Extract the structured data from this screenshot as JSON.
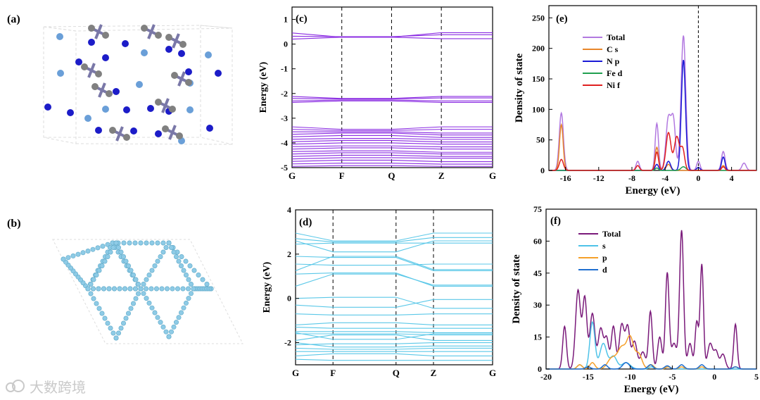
{
  "panel_labels": {
    "a": "(a)",
    "b": "(b)",
    "c": "(c)",
    "d": "(d)",
    "e": "(e)",
    "f": "(f)"
  },
  "watermark": "大数跨境",
  "colors": {
    "c_band": "#8a2be2",
    "d_band": "#5bc8e8",
    "e_total": "#b279e0",
    "e_cs": "#e8862a",
    "e_np": "#1a1ad6",
    "e_fed": "#20a050",
    "e_nif": "#e02020",
    "f_total": "#7a1a7a",
    "f_s": "#4fc3e8",
    "f_p": "#f5a02a",
    "f_d": "#1f6fd0"
  },
  "chart_data": [
    {
      "id": "c",
      "type": "line",
      "subtype": "band_structure",
      "ylabel": "Energy (eV)",
      "ylim": [
        -5,
        1.5
      ],
      "yticks": [
        -5,
        -4,
        -3,
        -2,
        -1,
        0,
        1
      ],
      "kpoints": [
        "G",
        "F",
        "Q",
        "Z",
        "G"
      ],
      "kpos": [
        0,
        1,
        2,
        3,
        4.03
      ],
      "bands": [
        [
          0.45,
          0.28,
          0.28,
          0.46,
          0.46
        ],
        [
          0.2,
          0.28,
          0.28,
          0.22,
          0.22
        ],
        [
          0.32,
          0.3,
          0.3,
          0.38,
          0.38
        ],
        [
          -2.12,
          -2.2,
          -2.2,
          -2.12,
          -2.12
        ],
        [
          -2.2,
          -2.22,
          -2.22,
          -2.18,
          -2.18
        ],
        [
          -2.3,
          -2.26,
          -2.26,
          -2.3,
          -2.3
        ],
        [
          -2.36,
          -2.3,
          -2.3,
          -2.36,
          -2.36
        ],
        [
          -3.35,
          -3.45,
          -3.45,
          -3.35,
          -3.35
        ],
        [
          -3.45,
          -3.5,
          -3.5,
          -3.45,
          -3.45
        ],
        [
          -3.55,
          -3.55,
          -3.55,
          -3.6,
          -3.6
        ],
        [
          -3.65,
          -3.6,
          -3.6,
          -3.68,
          -3.68
        ],
        [
          -3.75,
          -3.7,
          -3.7,
          -3.78,
          -3.78
        ],
        [
          -3.85,
          -3.82,
          -3.82,
          -3.86,
          -3.86
        ],
        [
          -3.95,
          -3.9,
          -3.9,
          -3.96,
          -3.96
        ],
        [
          -4.05,
          -4.0,
          -4.0,
          -4.05,
          -4.05
        ],
        [
          -4.15,
          -4.12,
          -4.12,
          -4.16,
          -4.16
        ],
        [
          -4.25,
          -4.2,
          -4.2,
          -4.25,
          -4.25
        ],
        [
          -4.35,
          -4.32,
          -4.32,
          -4.38,
          -4.38
        ],
        [
          -4.45,
          -4.4,
          -4.4,
          -4.45,
          -4.45
        ],
        [
          -4.55,
          -4.5,
          -4.5,
          -4.55,
          -4.55
        ],
        [
          -4.65,
          -4.6,
          -4.6,
          -4.62,
          -4.62
        ],
        [
          -4.75,
          -4.7,
          -4.7,
          -4.76,
          -4.76
        ],
        [
          -4.85,
          -4.82,
          -4.82,
          -4.86,
          -4.86
        ],
        [
          -4.95,
          -4.92,
          -4.92,
          -4.95,
          -4.95
        ]
      ]
    },
    {
      "id": "d",
      "type": "line",
      "subtype": "band_structure",
      "ylabel": "Energy (eV)",
      "ylim": [
        -3,
        4
      ],
      "yticks": [
        -2,
        0,
        2,
        4
      ],
      "kpoints": [
        "G",
        "F",
        "Q",
        "Z",
        "G"
      ],
      "kpos": [
        0,
        0.19,
        0.51,
        0.7,
        1.0
      ],
      "bands": [
        [
          2.95,
          2.6,
          2.6,
          2.95,
          2.95
        ],
        [
          2.7,
          2.55,
          2.55,
          2.75,
          2.75
        ],
        [
          2.45,
          2.5,
          2.5,
          2.5,
          2.5
        ],
        [
          2.6,
          2.1,
          2.1,
          2.6,
          2.6
        ],
        [
          1.25,
          1.9,
          1.9,
          1.3,
          1.3
        ],
        [
          1.9,
          1.85,
          1.85,
          1.25,
          1.25
        ],
        [
          1.55,
          1.5,
          1.5,
          1.55,
          1.55
        ],
        [
          0.55,
          1.1,
          1.1,
          0.6,
          0.6
        ],
        [
          1.1,
          1.15,
          1.15,
          0.55,
          0.55
        ],
        [
          -0.3,
          -0.4,
          -0.4,
          -0.05,
          -0.05
        ],
        [
          0.0,
          0.05,
          0.05,
          -0.45,
          -0.45
        ],
        [
          -0.7,
          -0.75,
          -0.75,
          -0.7,
          -0.7
        ],
        [
          -1.2,
          -1.1,
          -1.1,
          -1.2,
          -1.2
        ],
        [
          -1.3,
          -1.35,
          -1.35,
          -1.35,
          -1.35
        ],
        [
          -1.5,
          -1.5,
          -1.5,
          -1.55,
          -1.55
        ],
        [
          -1.6,
          -1.6,
          -1.6,
          -1.65,
          -1.65
        ],
        [
          -1.55,
          -1.85,
          -1.85,
          -1.6,
          -1.6
        ],
        [
          -1.9,
          -1.65,
          -1.65,
          -1.9,
          -1.9
        ],
        [
          -2.1,
          -2.05,
          -2.05,
          -2.0,
          -2.0
        ],
        [
          -2.0,
          -2.2,
          -2.2,
          -2.15,
          -2.15
        ],
        [
          -2.25,
          -2.3,
          -2.3,
          -2.25,
          -2.25
        ],
        [
          -2.4,
          -2.4,
          -2.4,
          -2.4,
          -2.4
        ],
        [
          -2.6,
          -2.5,
          -2.5,
          -2.6,
          -2.6
        ],
        [
          -2.75,
          -2.8,
          -2.8,
          -2.8,
          -2.8
        ]
      ]
    },
    {
      "id": "e",
      "type": "line",
      "subtype": "dos",
      "xlabel": "Energy (eV)",
      "ylabel": "Density of state",
      "xlim": [
        -18,
        7
      ],
      "ylim": [
        0,
        270
      ],
      "xticks": [
        -16,
        -12,
        -8,
        -4,
        0,
        4
      ],
      "yticks": [
        0,
        50,
        100,
        150,
        200,
        250
      ],
      "fermi_level": 0,
      "legend": {
        "placement": "top-left"
      },
      "series": [
        {
          "name": "Total",
          "color_key": "e_total",
          "peaks": [
            [
              -16.5,
              94,
              0.25
            ],
            [
              -7.3,
              15,
              0.2
            ],
            [
              -5.0,
              77,
              0.2
            ],
            [
              -3.6,
              86,
              0.3
            ],
            [
              -3.0,
              78,
              0.25
            ],
            [
              -1.8,
              221,
              0.28
            ],
            [
              0.0,
              15,
              0.2
            ],
            [
              3.0,
              31,
              0.22
            ],
            [
              5.5,
              12,
              0.25
            ]
          ]
        },
        {
          "name": "C s",
          "color_key": "e_cs",
          "peaks": [
            [
              -16.5,
              75,
              0.22
            ],
            [
              -5.0,
              38,
              0.2
            ],
            [
              -3.6,
              10,
              0.25
            ],
            [
              3.0,
              8,
              0.2
            ]
          ]
        },
        {
          "name": "N p",
          "color_key": "e_np",
          "peaks": [
            [
              -5.0,
              10,
              0.2
            ],
            [
              -3.6,
              15,
              0.25
            ],
            [
              -1.8,
              181,
              0.25
            ],
            [
              0.0,
              5,
              0.2
            ],
            [
              3.0,
              22,
              0.2
            ]
          ]
        },
        {
          "name": "Fe d",
          "color_key": "e_fed",
          "peaks": [
            [
              -5.0,
              4,
              0.2
            ],
            [
              -1.8,
              6,
              0.3
            ]
          ]
        },
        {
          "name": "Ni f",
          "color_key": "e_nif",
          "peaks": [
            [
              -16.5,
              18,
              0.25
            ],
            [
              -7.3,
              8,
              0.2
            ],
            [
              -5.0,
              30,
              0.2
            ],
            [
              -3.6,
              62,
              0.3
            ],
            [
              -2.6,
              55,
              0.3
            ],
            [
              -1.9,
              35,
              0.25
            ],
            [
              3.0,
              6,
              0.2
            ]
          ]
        }
      ]
    },
    {
      "id": "f",
      "type": "line",
      "subtype": "dos",
      "xlabel": "Energy (eV)",
      "ylabel": "Density of state",
      "xlim": [
        -20,
        5
      ],
      "ylim": [
        0,
        75
      ],
      "xticks": [
        -20,
        -15,
        -10,
        -5,
        0,
        5
      ],
      "yticks": [
        0,
        15,
        30,
        45,
        60,
        75
      ],
      "legend": {
        "placement": "top-left"
      },
      "series": [
        {
          "name": "Total",
          "color_key": "f_total",
          "peaks": [
            [
              -17.8,
              20,
              0.22
            ],
            [
              -16.2,
              37,
              0.3
            ],
            [
              -15.4,
              33,
              0.25
            ],
            [
              -14.5,
              26,
              0.3
            ],
            [
              -13.5,
              19,
              0.3
            ],
            [
              -12.8,
              14,
              0.25
            ],
            [
              -12.0,
              20,
              0.25
            ],
            [
              -11.0,
              21,
              0.3
            ],
            [
              -10.3,
              19,
              0.25
            ],
            [
              -9.5,
              13,
              0.3
            ],
            [
              -8.5,
              8,
              0.3
            ],
            [
              -7.6,
              27,
              0.22
            ],
            [
              -6.5,
              15,
              0.25
            ],
            [
              -5.6,
              45,
              0.22
            ],
            [
              -4.8,
              12,
              0.3
            ],
            [
              -3.9,
              65,
              0.24
            ],
            [
              -2.9,
              12,
              0.25
            ],
            [
              -2.1,
              22,
              0.2
            ],
            [
              -1.5,
              49,
              0.2
            ],
            [
              -0.5,
              12,
              0.3
            ],
            [
              0.2,
              8,
              0.25
            ],
            [
              1.0,
              7,
              0.3
            ],
            [
              2.5,
              21,
              0.2
            ]
          ]
        },
        {
          "name": "s",
          "color_key": "f_s",
          "peaks": [
            [
              -16.0,
              2,
              0.3
            ],
            [
              -14.5,
              22,
              0.3
            ],
            [
              -13.2,
              12,
              0.4
            ],
            [
              -12.0,
              6,
              0.4
            ],
            [
              -10.5,
              3,
              0.5
            ],
            [
              -7.5,
              1,
              0.3
            ],
            [
              -5.5,
              1,
              0.3
            ]
          ]
        },
        {
          "name": "p",
          "color_key": "f_p",
          "peaks": [
            [
              -16.0,
              2,
              0.3
            ],
            [
              -14.5,
              3,
              0.3
            ],
            [
              -12.2,
              5,
              0.5
            ],
            [
              -11.0,
              10,
              0.5
            ],
            [
              -10.0,
              14,
              0.4
            ],
            [
              -9.0,
              7,
              0.4
            ],
            [
              -7.5,
              2,
              0.3
            ],
            [
              -5.5,
              1,
              0.3
            ],
            [
              -3.9,
              1,
              0.3
            ],
            [
              -1.5,
              1,
              0.3
            ],
            [
              2.5,
              1,
              0.3
            ]
          ]
        },
        {
          "name": "d",
          "color_key": "f_d",
          "peaks": [
            [
              -15.0,
              1,
              0.3
            ],
            [
              -13.0,
              2,
              0.3
            ],
            [
              -10.5,
              3,
              0.4
            ],
            [
              -7.6,
              2,
              0.3
            ],
            [
              -5.6,
              1.5,
              0.3
            ],
            [
              -3.9,
              2,
              0.3
            ],
            [
              -1.5,
              2,
              0.3
            ],
            [
              2.5,
              1,
              0.3
            ]
          ]
        }
      ]
    }
  ]
}
